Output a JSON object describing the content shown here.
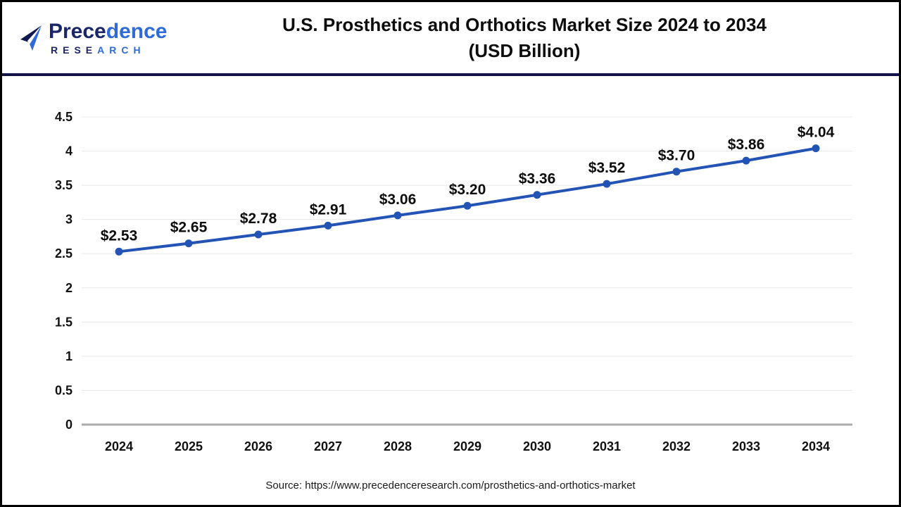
{
  "header": {
    "logo": {
      "brand_part1": "Prece",
      "brand_part2": "dence",
      "research_part1": "RESE",
      "research_part2": "ARCH",
      "color_dark": "#1b2668",
      "color_light": "#2e6bd8"
    },
    "title_line1": "U.S. Prosthetics and Orthotics Market Size 2024 to 2034",
    "title_line2": "(USD Billion)",
    "separator_color": "#13134a"
  },
  "chart_data": {
    "type": "line",
    "title": "U.S. Prosthetics and Orthotics Market Size 2024 to 2034 (USD Billion)",
    "categories": [
      "2024",
      "2025",
      "2026",
      "2027",
      "2028",
      "2029",
      "2030",
      "2031",
      "2032",
      "2033",
      "2034"
    ],
    "series": [
      {
        "name": "U.S. Prosthetics and Orthotics Market Size (USD Billion)",
        "values": [
          2.53,
          2.65,
          2.78,
          2.91,
          3.06,
          3.2,
          3.36,
          3.52,
          3.7,
          3.86,
          4.04
        ]
      }
    ],
    "data_labels": [
      "$2.53",
      "$2.65",
      "$2.78",
      "$2.91",
      "$3.06",
      "$3.20",
      "$3.36",
      "$3.52",
      "$3.70",
      "$3.86",
      "$4.04"
    ],
    "xlabel": "",
    "ylabel": "",
    "ylim": [
      0,
      4.5
    ],
    "ytick_step": 0.5,
    "ytick_labels": [
      "0",
      "0.5",
      "1",
      "1.5",
      "2",
      "2.5",
      "3",
      "3.5",
      "4",
      "4.5"
    ],
    "grid": true,
    "legend": false,
    "line_color": "#2353b5",
    "point_color": "#2353b5",
    "gridline_color": "#e8e8e8",
    "axis_line_color": "#ababab"
  },
  "footer": {
    "source_text": "Source: https://www.precedenceresearch.com/prosthetics-and-orthotics-market"
  }
}
